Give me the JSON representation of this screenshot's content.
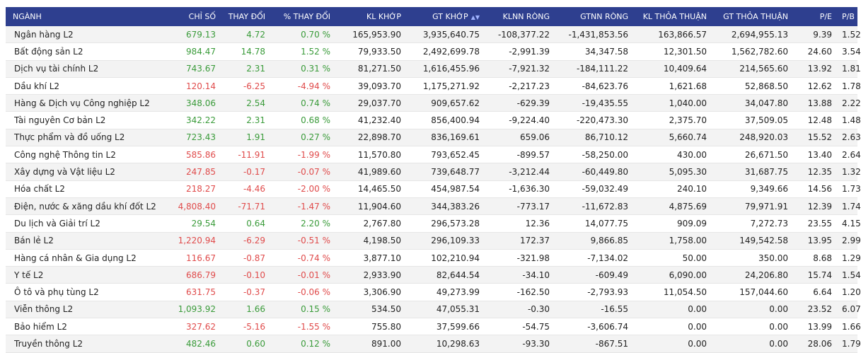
{
  "table": {
    "headers": {
      "nganh": "NGÀNH",
      "chi_so": "CHỈ SỐ",
      "thay_doi": "THAY ĐỔI",
      "pct_thay_doi": "% THAY ĐỔI",
      "kl_khop": "KL KHỚP",
      "gt_khop": "GT KHỚP",
      "klnn_rong": "KLNN RÒNG",
      "gtnn_rong": "GTNN RÒNG",
      "kl_thoa_thuan": "KL THỎA THUẬN",
      "gt_thoa_thuan": "GT THỎA THUẬN",
      "pe": "P/E",
      "pb": "P/B"
    },
    "sort_icon": "sort-icon",
    "colors": {
      "header_bg": "#2e3f8f",
      "up": "#3a9b3a",
      "down": "#e04b4b"
    },
    "rows": [
      {
        "name": "Ngân hàng L2",
        "chi_so": "679.13",
        "thay_doi": "4.72",
        "pct": "0.70 %",
        "dir": "up",
        "kl_khop": "165,953.90",
        "gt_khop": "3,935,640.75",
        "klnn": "-108,377.22",
        "gtnn": "-1,431,853.56",
        "kl_tt": "163,866.57",
        "gt_tt": "2,694,955.13",
        "pe": "9.39",
        "pb": "1.52"
      },
      {
        "name": "Bất động sản L2",
        "chi_so": "984.47",
        "thay_doi": "14.78",
        "pct": "1.52 %",
        "dir": "up",
        "kl_khop": "79,933.50",
        "gt_khop": "2,492,699.78",
        "klnn": "-2,991.39",
        "gtnn": "34,347.58",
        "kl_tt": "12,301.50",
        "gt_tt": "1,562,782.60",
        "pe": "24.60",
        "pb": "3.54"
      },
      {
        "name": "Dịch vụ tài chính L2",
        "chi_so": "743.67",
        "thay_doi": "2.31",
        "pct": "0.31 %",
        "dir": "up",
        "kl_khop": "81,271.50",
        "gt_khop": "1,616,455.96",
        "klnn": "-7,921.32",
        "gtnn": "-184,111.22",
        "kl_tt": "10,409.64",
        "gt_tt": "214,565.60",
        "pe": "13.92",
        "pb": "1.81"
      },
      {
        "name": "Dầu khí L2",
        "chi_so": "120.14",
        "thay_doi": "-6.25",
        "pct": "-4.94 %",
        "dir": "down",
        "kl_khop": "39,093.70",
        "gt_khop": "1,175,271.92",
        "klnn": "-2,217.23",
        "gtnn": "-84,623.76",
        "kl_tt": "1,621.68",
        "gt_tt": "52,868.50",
        "pe": "12.62",
        "pb": "1.78"
      },
      {
        "name": "Hàng & Dịch vụ Công nghiệp L2",
        "chi_so": "348.06",
        "thay_doi": "2.54",
        "pct": "0.74 %",
        "dir": "up",
        "kl_khop": "29,037.70",
        "gt_khop": "909,657.62",
        "klnn": "-629.39",
        "gtnn": "-19,435.55",
        "kl_tt": "1,040.00",
        "gt_tt": "34,047.80",
        "pe": "13.88",
        "pb": "2.22"
      },
      {
        "name": "Tài nguyên Cơ bản L2",
        "chi_so": "342.22",
        "thay_doi": "2.31",
        "pct": "0.68 %",
        "dir": "up",
        "kl_khop": "41,232.40",
        "gt_khop": "856,400.94",
        "klnn": "-9,224.40",
        "gtnn": "-220,473.30",
        "kl_tt": "2,375.70",
        "gt_tt": "37,509.05",
        "pe": "12.48",
        "pb": "1.48"
      },
      {
        "name": "Thực phẩm và đồ uống L2",
        "chi_so": "723.43",
        "thay_doi": "1.91",
        "pct": "0.27 %",
        "dir": "up",
        "kl_khop": "22,898.70",
        "gt_khop": "836,169.61",
        "klnn": "659.06",
        "gtnn": "86,710.12",
        "kl_tt": "5,660.74",
        "gt_tt": "248,920.03",
        "pe": "15.52",
        "pb": "2.63"
      },
      {
        "name": "Công nghệ Thông tin L2",
        "chi_so": "585.86",
        "thay_doi": "-11.91",
        "pct": "-1.99 %",
        "dir": "down",
        "kl_khop": "11,570.80",
        "gt_khop": "793,652.45",
        "klnn": "-899.57",
        "gtnn": "-58,250.00",
        "kl_tt": "430.00",
        "gt_tt": "26,671.50",
        "pe": "13.40",
        "pb": "2.64"
      },
      {
        "name": "Xây dựng và Vật liệu L2",
        "chi_so": "247.85",
        "thay_doi": "-0.17",
        "pct": "-0.07 %",
        "dir": "down",
        "kl_khop": "41,989.60",
        "gt_khop": "739,648.77",
        "klnn": "-3,212.44",
        "gtnn": "-60,449.80",
        "kl_tt": "5,095.30",
        "gt_tt": "31,687.75",
        "pe": "12.35",
        "pb": "1.32"
      },
      {
        "name": "Hóa chất L2",
        "chi_so": "218.27",
        "thay_doi": "-4.46",
        "pct": "-2.00 %",
        "dir": "down",
        "kl_khop": "14,465.50",
        "gt_khop": "454,987.54",
        "klnn": "-1,636.30",
        "gtnn": "-59,032.49",
        "kl_tt": "240.10",
        "gt_tt": "9,349.66",
        "pe": "14.56",
        "pb": "1.73"
      },
      {
        "name": "Điện, nước & xăng dầu khí đốt L2",
        "chi_so": "4,808.40",
        "thay_doi": "-71.71",
        "pct": "-1.47 %",
        "dir": "down",
        "kl_khop": "11,904.60",
        "gt_khop": "344,383.26",
        "klnn": "-773.17",
        "gtnn": "-11,672.83",
        "kl_tt": "4,875.69",
        "gt_tt": "79,971.91",
        "pe": "12.39",
        "pb": "1.74"
      },
      {
        "name": "Du lịch và Giải trí L2",
        "chi_so": "29.54",
        "thay_doi": "0.64",
        "pct": "2.20 %",
        "dir": "up",
        "kl_khop": "2,767.80",
        "gt_khop": "296,573.28",
        "klnn": "12.36",
        "gtnn": "14,077.75",
        "kl_tt": "909.09",
        "gt_tt": "7,272.73",
        "pe": "23.55",
        "pb": "4.15"
      },
      {
        "name": "Bán lẻ L2",
        "chi_so": "1,220.94",
        "thay_doi": "-6.29",
        "pct": "-0.51 %",
        "dir": "down",
        "kl_khop": "4,198.50",
        "gt_khop": "296,109.33",
        "klnn": "172.37",
        "gtnn": "9,866.85",
        "kl_tt": "1,758.00",
        "gt_tt": "149,542.58",
        "pe": "13.95",
        "pb": "2.99"
      },
      {
        "name": "Hàng cá nhân & Gia dụng L2",
        "chi_so": "116.67",
        "thay_doi": "-0.87",
        "pct": "-0.74 %",
        "dir": "down",
        "kl_khop": "3,877.10",
        "gt_khop": "102,210.94",
        "klnn": "-321.98",
        "gtnn": "-7,134.02",
        "kl_tt": "50.00",
        "gt_tt": "350.00",
        "pe": "8.68",
        "pb": "1.29"
      },
      {
        "name": "Y tế L2",
        "chi_so": "686.79",
        "thay_doi": "-0.10",
        "pct": "-0.01 %",
        "dir": "down",
        "kl_khop": "2,933.90",
        "gt_khop": "82,644.54",
        "klnn": "-34.10",
        "gtnn": "-609.49",
        "kl_tt": "6,090.00",
        "gt_tt": "24,206.80",
        "pe": "15.74",
        "pb": "1.54"
      },
      {
        "name": "Ô tô và phụ tùng L2",
        "chi_so": "631.75",
        "thay_doi": "-0.37",
        "pct": "-0.06 %",
        "dir": "down",
        "kl_khop": "3,306.90",
        "gt_khop": "49,273.99",
        "klnn": "-162.50",
        "gtnn": "-2,793.93",
        "kl_tt": "11,054.50",
        "gt_tt": "157,044.60",
        "pe": "6.64",
        "pb": "1.20"
      },
      {
        "name": "Viễn thông L2",
        "chi_so": "1,093.92",
        "thay_doi": "1.66",
        "pct": "0.15 %",
        "dir": "up",
        "kl_khop": "534.50",
        "gt_khop": "47,055.31",
        "klnn": "-0.30",
        "gtnn": "-16.55",
        "kl_tt": "0.00",
        "gt_tt": "0.00",
        "pe": "23.52",
        "pb": "6.07"
      },
      {
        "name": "Bảo hiểm L2",
        "chi_so": "327.62",
        "thay_doi": "-5.16",
        "pct": "-1.55 %",
        "dir": "down",
        "kl_khop": "755.80",
        "gt_khop": "37,599.66",
        "klnn": "-54.75",
        "gtnn": "-3,606.74",
        "kl_tt": "0.00",
        "gt_tt": "0.00",
        "pe": "13.99",
        "pb": "1.66"
      },
      {
        "name": "Truyền thông L2",
        "chi_so": "482.46",
        "thay_doi": "0.60",
        "pct": "0.12 %",
        "dir": "up",
        "kl_khop": "891.00",
        "gt_khop": "10,298.63",
        "klnn": "-93.30",
        "gtnn": "-867.51",
        "kl_tt": "0.00",
        "gt_tt": "0.00",
        "pe": "28.06",
        "pb": "1.79"
      }
    ]
  }
}
